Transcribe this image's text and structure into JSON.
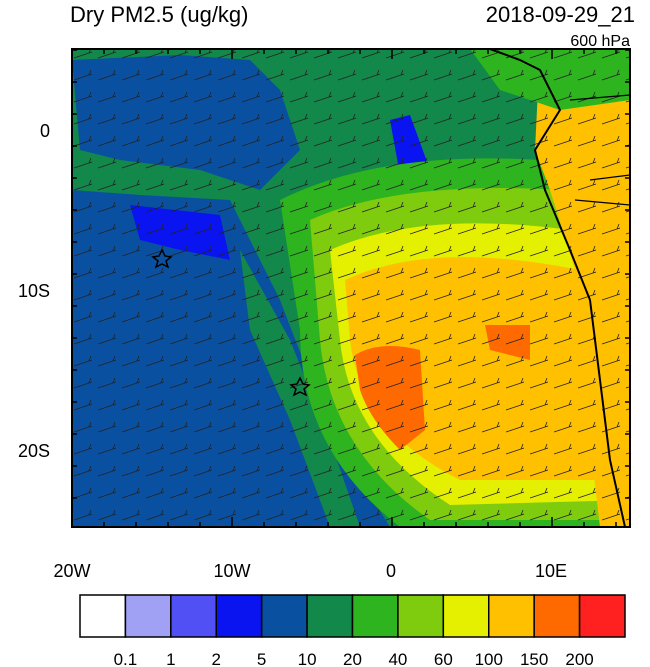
{
  "header": {
    "title": "Dry PM2.5 (ug/kg)",
    "date": "2018-09-29_21",
    "level": "600 hPa"
  },
  "axes": {
    "y_labels": [
      "0",
      "10S",
      "20S"
    ],
    "x_labels": [
      "20W",
      "10W",
      "0",
      "10E"
    ]
  },
  "colorbar": {
    "labels": [
      "0.1",
      "1",
      "2",
      "5",
      "10",
      "20",
      "40",
      "60",
      "100",
      "150",
      "200"
    ],
    "colors": [
      "#ffffff",
      "#a0a0f5",
      "#5050f5",
      "#0a14f0",
      "#0a50a0",
      "#12884a",
      "#2db41e",
      "#7fcc0e",
      "#e5f000",
      "#ffc000",
      "#ff6a00",
      "#ff2020"
    ]
  }
}
